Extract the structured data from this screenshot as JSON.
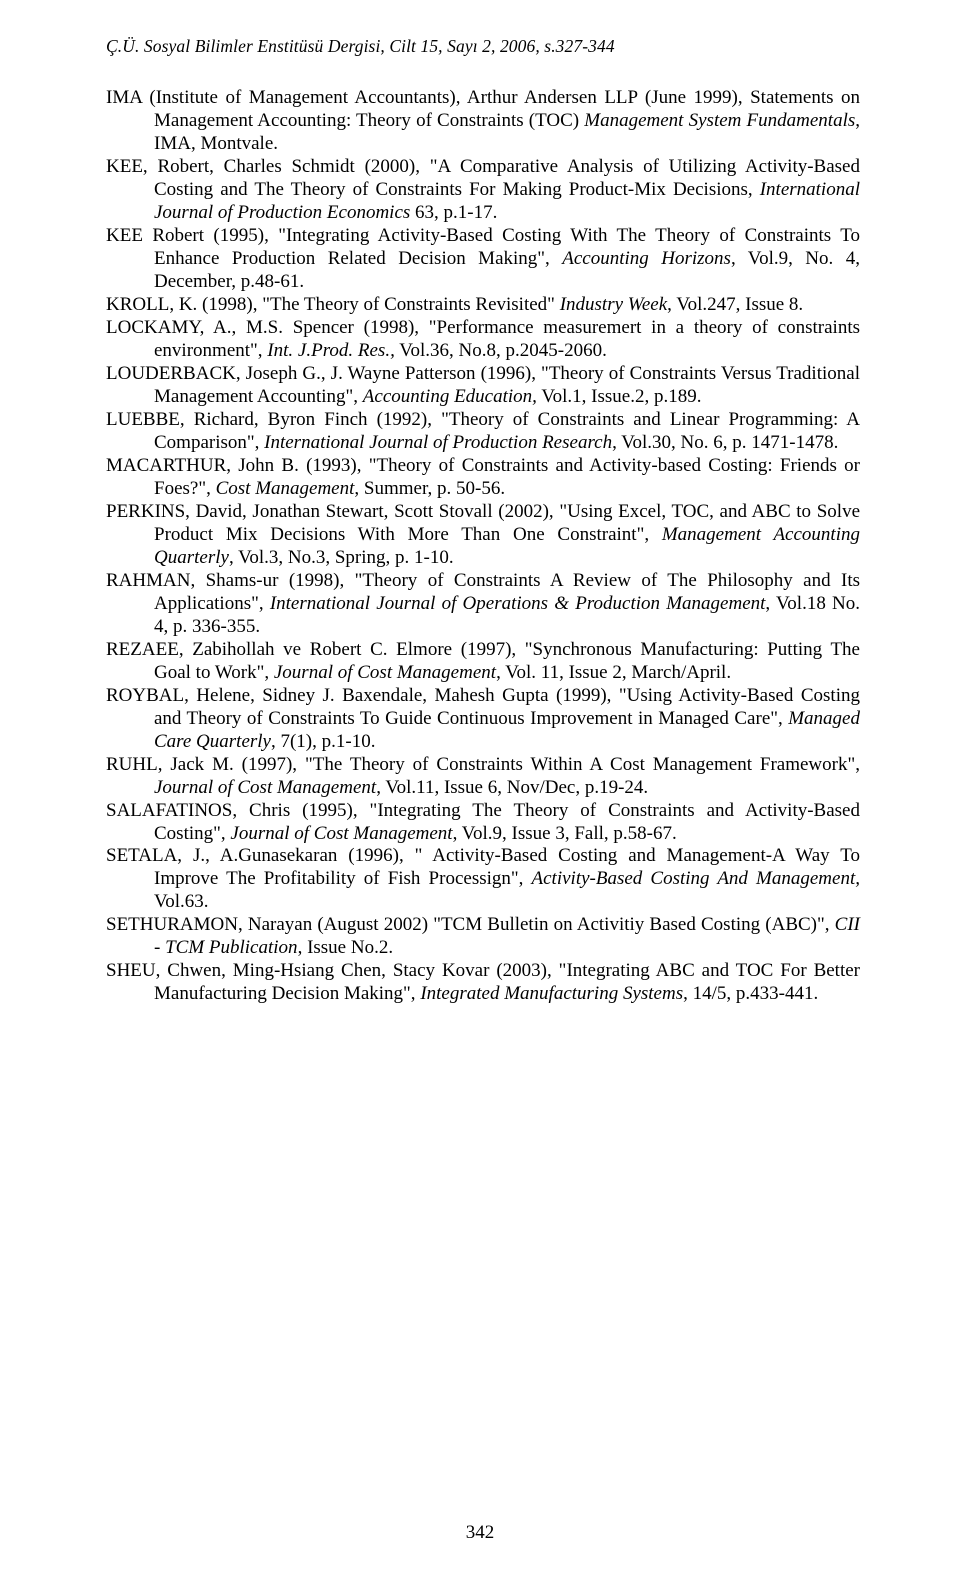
{
  "header": "Ç.Ü. Sosyal Bilimler Enstitüsü Dergisi, Cilt 15, Sayı 2, 2006, s.327-344",
  "page_number": "342",
  "refs": [
    {
      "pre": "IMA (Institute of Management Accountants), Arthur Andersen LLP (June 1999), Statements on Management Accounting: Theory of Constraints (TOC) ",
      "ital": "Management System Fundamentals",
      "post": ", IMA, Montvale."
    },
    {
      "pre": "KEE, Robert, Charles Schmidt (2000), \"A Comparative Analysis of Utilizing Activity-Based Costing and The Theory of Constraints For Making Product-Mix Decisions, ",
      "ital": "International Journal of Production Economics",
      "post": " 63, p.1-17."
    },
    {
      "pre": "KEE Robert (1995), \"Integrating Activity-Based Costing With The Theory of Constraints To Enhance Production Related Decision Making\", ",
      "ital": "Accounting Horizons",
      "post": ", Vol.9, No. 4, December, p.48-61."
    },
    {
      "pre": "KROLL, K. (1998), \"The Theory of Constraints Revisited\" ",
      "ital": "Industry Week",
      "post": ", Vol.247, Issue 8."
    },
    {
      "pre": "LOCKAMY, A., M.S. Spencer (1998), \"Performance measuremert in a theory of constraints environment\", ",
      "ital": "Int. J.Prod. Res.,",
      "post": " Vol.36, No.8, p.2045-2060."
    },
    {
      "pre": "LOUDERBACK, Joseph G., J. Wayne Patterson (1996), \"Theory of Constraints Versus Traditional Management Accounting\", ",
      "ital": "Accounting Education,",
      "post": " Vol.1, Issue.2, p.189."
    },
    {
      "pre": "LUEBBE, Richard, Byron Finch (1992), \"Theory of Constraints and Linear Programming: A Comparison\", ",
      "ital": "International Journal of  Production Research",
      "post": ", Vol.30, No. 6, p. 1471-1478."
    },
    {
      "pre": "MACARTHUR, John B. (1993), \"Theory of Constraints and Activity-based Costing: Friends or Foes?\", ",
      "ital": "Cost Management",
      "post": ", Summer, p. 50-56."
    },
    {
      "pre": "PERKINS, David, Jonathan Stewart, Scott Stovall (2002), \"Using Excel, TOC, and ABC to Solve Product Mix Decisions With More Than One Constraint\", ",
      "ital": "Management Accounting Quarterly",
      "post": ", Vol.3, No.3, Spring, p. 1-10."
    },
    {
      "pre": "RAHMAN, Shams-ur (1998), \"Theory of Constraints A Review of The Philosophy and Its Applications\", ",
      "ital": "International Journal of Operations & Production Management",
      "post": ", Vol.18 No. 4, p. 336-355."
    },
    {
      "pre": "REZAEE, Zabihollah ve Robert C. Elmore (1997), \"Synchronous Manufacturing: Putting The Goal to Work\", ",
      "ital": "Journal of Cost Management",
      "post": ", Vol. 11, Issue 2, March/April."
    },
    {
      "pre": "ROYBAL, Helene, Sidney J. Baxendale, Mahesh Gupta (1999), \"Using Activity-Based Costing and Theory of Constraints To Guide Continuous Improvement in Managed Care\", ",
      "ital": "Managed Care Quarterly",
      "post": ", 7(1), p.1-10."
    },
    {
      "pre": "RUHL, Jack M. (1997), \"The Theory of Constraints Within A Cost Management Framework\", ",
      "ital": "Journal of Cost Management",
      "post": ", Vol.11, Issue 6, Nov/Dec, p.19-24."
    },
    {
      "pre": "SALAFATINOS, Chris (1995), \"Integrating The Theory of Constraints and Activity-Based Costing\", ",
      "ital": "Journal of Cost Management",
      "post": ", Vol.9, Issue 3, Fall, p.58-67."
    },
    {
      "pre": "SETALA, J., A.Gunasekaran (1996), \" Activity-Based Costing and Management-A Way To Improve The Profitability of Fish Processign\", ",
      "ital": "Activity-Based Costing And Management,",
      "post": " Vol.63."
    },
    {
      "pre": "SETHURAMON, Narayan (August 2002) \"TCM Bulletin on Activitiy Based Costing (ABC)\", ",
      "ital": "CII - TCM Publication",
      "post": ", Issue No.2."
    },
    {
      "pre": "SHEU, Chwen, Ming-Hsiang Chen, Stacy Kovar (2003), \"Integrating ABC and TOC For Better Manufacturing Decision Making\", ",
      "ital": "Integrated Manufacturing Systems",
      "post": ", 14/5, p.433-441."
    }
  ]
}
